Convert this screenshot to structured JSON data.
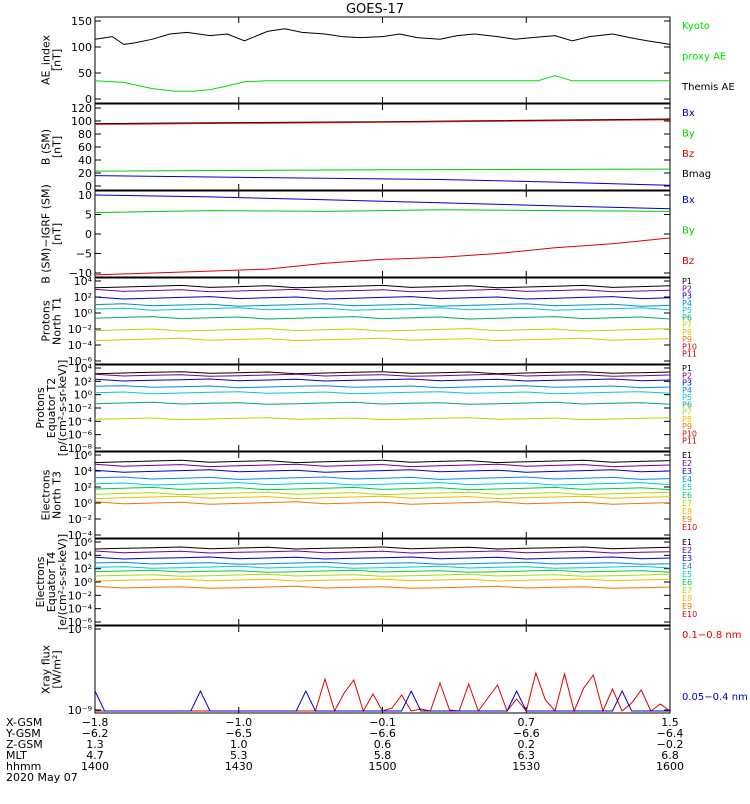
{
  "title": "GOES-17",
  "chart_data": [
    {
      "type": "line",
      "ylabel": [
        "AE_index",
        "[nT]"
      ],
      "ylim": [
        0,
        150
      ],
      "yticks": [
        "0",
        "50",
        "100",
        "150"
      ],
      "legend": [
        {
          "name": "Kyoto",
          "color": "#00dd00"
        },
        {
          "name": "proxy AE",
          "color": "#00dd00"
        },
        {
          "name": "Themis AE",
          "color": "#000000"
        }
      ],
      "series": [
        {
          "name": "Themis AE",
          "color": "#000000",
          "x": [
            0,
            0.03,
            0.05,
            0.07,
            0.1,
            0.13,
            0.16,
            0.2,
            0.23,
            0.26,
            0.3,
            0.33,
            0.36,
            0.4,
            0.43,
            0.46,
            0.5,
            0.53,
            0.56,
            0.6,
            0.63,
            0.66,
            0.7,
            0.73,
            0.76,
            0.8,
            0.83,
            0.86,
            0.9,
            0.93,
            0.96,
            1
          ],
          "y": [
            115,
            120,
            105,
            108,
            115,
            125,
            128,
            122,
            125,
            112,
            130,
            135,
            128,
            125,
            120,
            118,
            120,
            125,
            118,
            115,
            122,
            125,
            120,
            115,
            118,
            122,
            112,
            120,
            125,
            118,
            112,
            105
          ]
        },
        {
          "name": "Kyoto proxy AE",
          "color": "#00dd00",
          "x": [
            0,
            0.05,
            0.1,
            0.14,
            0.17,
            0.2,
            0.23,
            0.26,
            0.3,
            0.5,
            0.7,
            0.77,
            0.8,
            0.83,
            0.9,
            1
          ],
          "y": [
            35,
            32,
            20,
            15,
            15,
            18,
            25,
            33,
            35,
            35,
            35,
            35,
            45,
            35,
            35,
            35
          ]
        }
      ]
    },
    {
      "type": "line",
      "ylabel": [
        "B (SM)",
        "[nT]"
      ],
      "ylim": [
        0,
        120
      ],
      "yticks": [
        "0",
        "20",
        "40",
        "60",
        "80",
        "100",
        "120"
      ],
      "legend": [
        {
          "name": "Bx",
          "color": "#0000cc"
        },
        {
          "name": "By",
          "color": "#00cc00"
        },
        {
          "name": "Bz",
          "color": "#dd0000"
        },
        {
          "name": "Bmag",
          "color": "#000000"
        }
      ],
      "series": [
        {
          "name": "Bmag",
          "color": "#000000",
          "x": [
            0,
            0.5,
            1
          ],
          "y": [
            96,
            99,
            103
          ]
        },
        {
          "name": "Bz",
          "color": "#dd0000",
          "x": [
            0,
            0.5,
            1
          ],
          "y": [
            95,
            98,
            102
          ]
        },
        {
          "name": "By",
          "color": "#00cc00",
          "x": [
            0,
            0.5,
            1
          ],
          "y": [
            23,
            25,
            26
          ]
        },
        {
          "name": "Bx",
          "color": "#0000cc",
          "x": [
            0,
            0.3,
            0.6,
            0.8,
            1
          ],
          "y": [
            16,
            13,
            10,
            6,
            1
          ]
        }
      ]
    },
    {
      "type": "line",
      "ylabel": [
        "B (SM)−IGRF (SM)",
        "[nT]"
      ],
      "ylim": [
        -10,
        10
      ],
      "yticks": [
        "−10",
        "−5",
        "0",
        "5",
        "10"
      ],
      "legend": [
        {
          "name": "Bx",
          "color": "#0000cc"
        },
        {
          "name": "By",
          "color": "#00cc00"
        },
        {
          "name": "Bz",
          "color": "#dd0000"
        }
      ],
      "series": [
        {
          "name": "Bx",
          "color": "#0000cc",
          "x": [
            0,
            0.2,
            0.4,
            0.6,
            0.8,
            1
          ],
          "y": [
            10,
            9.5,
            8.8,
            8,
            7.2,
            6.5
          ]
        },
        {
          "name": "By",
          "color": "#00cc00",
          "x": [
            0,
            0.2,
            0.4,
            0.6,
            0.8,
            1
          ],
          "y": [
            5.5,
            6,
            5.8,
            6.2,
            6,
            5.8
          ]
        },
        {
          "name": "Bz",
          "color": "#dd0000",
          "x": [
            0,
            0.1,
            0.2,
            0.3,
            0.4,
            0.5,
            0.6,
            0.7,
            0.8,
            0.9,
            1
          ],
          "y": [
            -10.5,
            -10,
            -9.5,
            -9,
            -7.5,
            -6.5,
            -6,
            -5,
            -3.5,
            -2.5,
            -1
          ]
        }
      ]
    },
    {
      "type": "line",
      "log": true,
      "ylabel": [
        "Protons",
        "North T1"
      ],
      "ylim_exp": [
        -6,
        4
      ],
      "yticks": [
        "10⁴",
        "10²",
        "10⁰",
        "10⁻²",
        "10⁻⁴",
        "10⁻⁶"
      ],
      "legend": [
        {
          "name": "P1",
          "color": "#000000"
        },
        {
          "name": "P2",
          "color": "#770088"
        },
        {
          "name": "P3",
          "color": "#0000cc"
        },
        {
          "name": "P4",
          "color": "#0088ee"
        },
        {
          "name": "P5",
          "color": "#00cccc"
        },
        {
          "name": "P6",
          "color": "#00aa66"
        },
        {
          "name": "P7",
          "color": "#aadd00"
        },
        {
          "name": "P8",
          "color": "#eebb00"
        },
        {
          "name": "P9",
          "color": "#ee7700"
        },
        {
          "name": "P10",
          "color": "#dd0000"
        },
        {
          "name": "P11",
          "color": "#aa0000"
        }
      ],
      "levels": [
        {
          "color": "#000000",
          "e": 3.3
        },
        {
          "color": "#770088",
          "e": 2.8
        },
        {
          "color": "#0000cc",
          "e": 1.9
        },
        {
          "color": "#0088ee",
          "e": 1.0
        },
        {
          "color": "#00cccc",
          "e": 0.5
        },
        {
          "color": "#00aa66",
          "e": -0.6
        },
        {
          "color": "#aadd00",
          "e": -2.1
        },
        {
          "color": "#eebb00",
          "e": -3.3
        }
      ]
    },
    {
      "type": "line",
      "log": true,
      "ylabel": [
        "Protons",
        "Equator T2",
        "[p/(cm²-s-sr-keV)]"
      ],
      "ylim_exp": [
        -8,
        4
      ],
      "yticks": [
        "10⁴",
        "10²",
        "10⁰",
        "10⁻²",
        "10⁻⁴",
        "10⁻⁶",
        "10⁻⁸"
      ],
      "legend": [
        {
          "name": "P1",
          "color": "#000000"
        },
        {
          "name": "P2",
          "color": "#770088"
        },
        {
          "name": "P3",
          "color": "#0000cc"
        },
        {
          "name": "P4",
          "color": "#0088ee"
        },
        {
          "name": "P5",
          "color": "#00cccc"
        },
        {
          "name": "P6",
          "color": "#00aa66"
        },
        {
          "name": "P7",
          "color": "#aadd00"
        },
        {
          "name": "P8",
          "color": "#eebb00"
        },
        {
          "name": "P9",
          "color": "#ee7700"
        },
        {
          "name": "P10",
          "color": "#dd0000"
        },
        {
          "name": "P11",
          "color": "#aa0000"
        }
      ],
      "levels": [
        {
          "color": "#000000",
          "e": 3.3
        },
        {
          "color": "#770088",
          "e": 2.9
        },
        {
          "color": "#0000cc",
          "e": 2.2
        },
        {
          "color": "#0088ee",
          "e": 1.2
        },
        {
          "color": "#00cccc",
          "e": 0.3
        },
        {
          "color": "#00aa66",
          "e": -1.3
        },
        {
          "color": "#aadd00",
          "e": -3.6
        }
      ]
    },
    {
      "type": "line",
      "log": true,
      "ylabel": [
        "Electrons",
        "North T3"
      ],
      "ylim_exp": [
        -4,
        6
      ],
      "yticks": [
        "10⁶",
        "10⁴",
        "10²",
        "10⁰",
        "10⁻²",
        "10⁻⁴"
      ],
      "legend": [
        {
          "name": "E1",
          "color": "#000000"
        },
        {
          "name": "E2",
          "color": "#770088"
        },
        {
          "name": "E3",
          "color": "#0000cc"
        },
        {
          "name": "E4",
          "color": "#0088ee"
        },
        {
          "name": "E5",
          "color": "#00cccc"
        },
        {
          "name": "E6",
          "color": "#00cc44"
        },
        {
          "name": "E7",
          "color": "#aadd00"
        },
        {
          "name": "E8",
          "color": "#eebb00"
        },
        {
          "name": "E9",
          "color": "#ee7700"
        },
        {
          "name": "E10",
          "color": "#dd0000"
        }
      ],
      "levels": [
        {
          "color": "#000000",
          "e": 5.2
        },
        {
          "color": "#770088",
          "e": 4.7
        },
        {
          "color": "#0000cc",
          "e": 4.0
        },
        {
          "color": "#0088ee",
          "e": 3.1
        },
        {
          "color": "#00cccc",
          "e": 2.4
        },
        {
          "color": "#00cc44",
          "e": 1.8
        },
        {
          "color": "#aadd00",
          "e": 1.2
        },
        {
          "color": "#eebb00",
          "e": 0.7
        },
        {
          "color": "#ee7700",
          "e": 0.0
        }
      ]
    },
    {
      "type": "line",
      "log": true,
      "ylabel": [
        "Electrons",
        "Equator T4",
        "[e/(cm²-s-sr-keV)]"
      ],
      "ylim_exp": [
        -6,
        6
      ],
      "yticks": [
        "10⁶",
        "10⁴",
        "10²",
        "10⁰",
        "10⁻²",
        "10⁻⁴",
        "10⁻⁶"
      ],
      "legend": [
        {
          "name": "E1",
          "color": "#000000"
        },
        {
          "name": "E2",
          "color": "#770088"
        },
        {
          "name": "E3",
          "color": "#0000cc"
        },
        {
          "name": "E4",
          "color": "#0088ee"
        },
        {
          "name": "E5",
          "color": "#00cccc"
        },
        {
          "name": "E6",
          "color": "#00cc44"
        },
        {
          "name": "E7",
          "color": "#aadd00"
        },
        {
          "name": "E8",
          "color": "#eebb00"
        },
        {
          "name": "E9",
          "color": "#ee7700"
        },
        {
          "name": "E10",
          "color": "#dd0000"
        }
      ],
      "levels": [
        {
          "color": "#000000",
          "e": 5.1
        },
        {
          "color": "#770088",
          "e": 4.5
        },
        {
          "color": "#0000cc",
          "e": 3.6
        },
        {
          "color": "#0088ee",
          "e": 2.8
        },
        {
          "color": "#00cccc",
          "e": 2.2
        },
        {
          "color": "#00cc44",
          "e": 1.6
        },
        {
          "color": "#aadd00",
          "e": 1.0
        },
        {
          "color": "#eebb00",
          "e": 0.3
        },
        {
          "color": "#ee7700",
          "e": -0.8
        }
      ]
    },
    {
      "type": "line",
      "log": true,
      "ylabel": [
        "Xray flux",
        "[W/m²]"
      ],
      "ylim_exp": [
        -9,
        -8
      ],
      "yticks": [
        "10⁻⁸",
        "10⁻⁹"
      ],
      "legend": [
        {
          "name": "0.1−0.8 nm",
          "color": "#dd0000"
        },
        {
          "name": "0.05−0.4 nm",
          "color": "#0000cc"
        }
      ]
    }
  ],
  "x_axis": {
    "tick_positions": [
      0,
      0.25,
      0.5,
      0.75,
      1
    ],
    "rows": [
      {
        "label": "X-GSM",
        "values": [
          "−1.8",
          "−1.0",
          "−0.1",
          "0.7",
          "1.5"
        ]
      },
      {
        "label": "Y-GSM",
        "values": [
          "−6.2",
          "−6.5",
          "−6.6",
          "−6.6",
          "−6.4"
        ]
      },
      {
        "label": "Z-GSM",
        "values": [
          "1.3",
          "1.0",
          "0.6",
          "0.2",
          "−0.2"
        ]
      },
      {
        "label": "MLT",
        "values": [
          "4.7",
          "5.3",
          "5.8",
          "6.3",
          "6.8"
        ]
      },
      {
        "label": "hhmm",
        "values": [
          "1400",
          "1430",
          "1500",
          "1530",
          "1600"
        ]
      }
    ],
    "date": "2020 May 07"
  }
}
